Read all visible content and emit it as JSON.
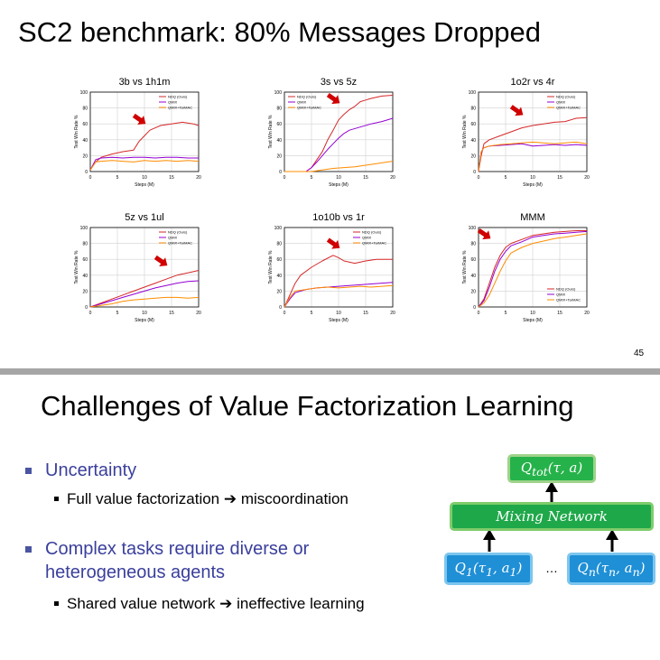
{
  "slide1": {
    "title": "SC2 benchmark: 80% Messages Dropped",
    "page_number": "45"
  },
  "slide2": {
    "title": "Challenges of Value Factorization Learning",
    "bullets": [
      {
        "label": "Uncertainty",
        "sub": "Full value factorization ➔ miscoordination"
      },
      {
        "label": "Complex tasks require diverse or heterogeneous agents",
        "sub": "Shared value network ➔ ineffective learning"
      }
    ],
    "diagram": {
      "top": "Q_tot(τ, a)",
      "mixer": "Mixing Network",
      "left": "Q_1(τ_1, a_1)",
      "right": "Q_n(τ_n, a_n)",
      "ellipsis": "…"
    }
  },
  "colors": {
    "ndq": "#d62728",
    "qmix": "#9400d3",
    "tarmac": "#ff8c00",
    "arrow": "#d00000"
  },
  "chart_data": [
    {
      "type": "line",
      "title": "3b vs 1h1m",
      "xlabel": "Steps (M)",
      "ylabel": "Test Win Rate %",
      "xlim": [
        0,
        20
      ],
      "ylim": [
        0,
        100
      ],
      "xticks": [
        0,
        5,
        10,
        15,
        20
      ],
      "yticks": [
        0,
        20,
        40,
        60,
        80,
        100
      ],
      "legend": "top-right",
      "arrow_at": [
        9,
        66
      ],
      "series": [
        {
          "name": "NDQ (Ours)",
          "x": [
            0,
            1,
            2,
            4,
            6,
            8,
            9,
            10,
            11,
            12,
            13,
            15,
            17,
            19,
            20
          ],
          "y": [
            2,
            12,
            18,
            22,
            25,
            27,
            38,
            45,
            52,
            55,
            58,
            60,
            62,
            60,
            58
          ]
        },
        {
          "name": "QMIX",
          "x": [
            0,
            1,
            2,
            4,
            6,
            8,
            10,
            12,
            14,
            16,
            18,
            20
          ],
          "y": [
            2,
            15,
            17,
            18,
            17,
            18,
            18,
            17,
            18,
            18,
            17,
            17
          ]
        },
        {
          "name": "QMIX+TarMAC",
          "x": [
            0,
            1,
            2,
            4,
            6,
            8,
            10,
            12,
            14,
            16,
            18,
            20
          ],
          "y": [
            2,
            12,
            13,
            14,
            13,
            12,
            14,
            13,
            14,
            13,
            14,
            13
          ]
        }
      ]
    },
    {
      "type": "line",
      "title": "3s vs 5z",
      "xlabel": "Steps (M)",
      "ylabel": "Test Win Rate %",
      "xlim": [
        0,
        20
      ],
      "ylim": [
        0,
        100
      ],
      "xticks": [
        0,
        5,
        10,
        15,
        20
      ],
      "yticks": [
        0,
        20,
        40,
        60,
        80,
        100
      ],
      "legend": "top-left",
      "arrow_at": [
        9,
        92
      ],
      "series": [
        {
          "name": "NDQ (Ours)",
          "x": [
            0,
            4,
            5,
            6,
            7,
            8,
            9,
            10,
            11,
            12,
            13,
            14,
            15,
            16,
            18,
            20
          ],
          "y": [
            0,
            0,
            5,
            15,
            25,
            40,
            52,
            65,
            72,
            78,
            82,
            88,
            90,
            92,
            95,
            96
          ]
        },
        {
          "name": "QMIX",
          "x": [
            0,
            4,
            5,
            6,
            7,
            8,
            9,
            10,
            11,
            12,
            14,
            16,
            18,
            20
          ],
          "y": [
            0,
            0,
            5,
            12,
            20,
            28,
            35,
            42,
            48,
            52,
            56,
            60,
            63,
            67
          ]
        },
        {
          "name": "QMIX+TarMAC",
          "x": [
            0,
            5,
            7,
            9,
            11,
            13,
            15,
            17,
            19,
            20
          ],
          "y": [
            0,
            0,
            2,
            4,
            5,
            6,
            8,
            10,
            12,
            13
          ]
        }
      ]
    },
    {
      "type": "line",
      "title": "1o2r vs 4r",
      "xlabel": "Steps (M)",
      "ylabel": "Test Win Rate %",
      "xlim": [
        0,
        20
      ],
      "ylim": [
        0,
        100
      ],
      "xticks": [
        0,
        5,
        10,
        15,
        20
      ],
      "yticks": [
        0,
        20,
        40,
        60,
        80,
        100
      ],
      "legend": "top-right",
      "arrow_at": [
        7,
        77
      ],
      "series": [
        {
          "name": "NDQ (Ours)",
          "x": [
            0,
            0.5,
            1,
            2,
            4,
            6,
            8,
            10,
            12,
            14,
            16,
            18,
            20
          ],
          "y": [
            0,
            20,
            35,
            40,
            45,
            50,
            55,
            58,
            60,
            62,
            63,
            67,
            68
          ]
        },
        {
          "name": "QMIX",
          "x": [
            0,
            0.5,
            1,
            2,
            4,
            6,
            8,
            10,
            12,
            14,
            16,
            18,
            20
          ],
          "y": [
            0,
            25,
            30,
            32,
            33,
            34,
            35,
            32,
            33,
            34,
            33,
            34,
            33
          ]
        },
        {
          "name": "QMIX+TarMAC",
          "x": [
            0,
            0.5,
            1,
            2,
            4,
            6,
            8,
            10,
            12,
            14,
            16,
            18,
            20
          ],
          "y": [
            0,
            25,
            30,
            32,
            34,
            35,
            36,
            37,
            36,
            35,
            36,
            37,
            35
          ]
        }
      ]
    },
    {
      "type": "line",
      "title": "5z vs 1ul",
      "xlabel": "Steps (M)",
      "ylabel": "Test Win Rate %",
      "xlim": [
        0,
        20
      ],
      "ylim": [
        0,
        100
      ],
      "xticks": [
        0,
        5,
        10,
        15,
        20
      ],
      "yticks": [
        0,
        20,
        40,
        60,
        80,
        100
      ],
      "legend": "top-right",
      "arrow_at": [
        13,
        58
      ],
      "series": [
        {
          "name": "NDQ (Ours)",
          "x": [
            0,
            2,
            4,
            6,
            8,
            10,
            12,
            14,
            16,
            18,
            20
          ],
          "y": [
            0,
            5,
            10,
            15,
            20,
            25,
            30,
            35,
            40,
            43,
            46
          ]
        },
        {
          "name": "QMIX",
          "x": [
            0,
            2,
            4,
            6,
            8,
            10,
            12,
            14,
            16,
            18,
            20
          ],
          "y": [
            0,
            4,
            8,
            12,
            16,
            20,
            24,
            27,
            30,
            32,
            33
          ]
        },
        {
          "name": "QMIX+TarMAC",
          "x": [
            0,
            2,
            4,
            6,
            8,
            10,
            12,
            14,
            16,
            18,
            20
          ],
          "y": [
            0,
            2,
            4,
            7,
            9,
            10,
            11,
            12,
            12,
            11,
            12
          ]
        }
      ]
    },
    {
      "type": "line",
      "title": "1o10b vs 1r",
      "xlabel": "Steps (M)",
      "ylabel": "Test Win Rate %",
      "xlim": [
        0,
        20
      ],
      "ylim": [
        0,
        100
      ],
      "xticks": [
        0,
        5,
        10,
        15,
        20
      ],
      "yticks": [
        0,
        20,
        40,
        60,
        80,
        100
      ],
      "legend": "top-right",
      "arrow_at": [
        9,
        80
      ],
      "series": [
        {
          "name": "NDQ (Ours)",
          "x": [
            0,
            1,
            2,
            3,
            5,
            7,
            9,
            10,
            11,
            13,
            15,
            17,
            20
          ],
          "y": [
            0,
            15,
            30,
            40,
            50,
            58,
            65,
            62,
            58,
            55,
            58,
            60,
            60
          ]
        },
        {
          "name": "QMIX",
          "x": [
            0,
            1,
            2,
            4,
            6,
            8,
            10,
            12,
            14,
            16,
            18,
            20
          ],
          "y": [
            0,
            10,
            18,
            22,
            24,
            25,
            26,
            27,
            28,
            29,
            30,
            31
          ]
        },
        {
          "name": "QMIX+TarMAC",
          "x": [
            0,
            1,
            2,
            4,
            6,
            8,
            10,
            12,
            14,
            16,
            18,
            20
          ],
          "y": [
            0,
            12,
            20,
            22,
            24,
            25,
            24,
            25,
            26,
            25,
            26,
            27
          ]
        }
      ]
    },
    {
      "type": "line",
      "title": "MMM",
      "xlabel": "Steps (M)",
      "ylabel": "Test Win Rate %",
      "xlim": [
        0,
        20
      ],
      "ylim": [
        0,
        100
      ],
      "xticks": [
        0,
        5,
        10,
        15,
        20
      ],
      "yticks": [
        0,
        20,
        40,
        60,
        80,
        100
      ],
      "legend": "bottom-right",
      "arrow_at": [
        1,
        92
      ],
      "series": [
        {
          "name": "NDQ (Ours)",
          "x": [
            0,
            1,
            2,
            3,
            4,
            5,
            6,
            8,
            10,
            12,
            14,
            16,
            18,
            20
          ],
          "y": [
            0,
            10,
            30,
            50,
            65,
            75,
            80,
            85,
            90,
            92,
            94,
            95,
            96,
            96
          ]
        },
        {
          "name": "QMIX",
          "x": [
            0,
            1,
            2,
            3,
            4,
            5,
            6,
            8,
            10,
            12,
            14,
            16,
            18,
            20
          ],
          "y": [
            0,
            8,
            25,
            45,
            60,
            70,
            77,
            82,
            88,
            90,
            92,
            93,
            94,
            95
          ]
        },
        {
          "name": "QMIX+TarMAC",
          "x": [
            0,
            1,
            2,
            3,
            4,
            5,
            6,
            8,
            10,
            12,
            14,
            16,
            18,
            20
          ],
          "y": [
            0,
            5,
            15,
            30,
            45,
            58,
            68,
            75,
            80,
            83,
            86,
            88,
            90,
            92
          ]
        }
      ]
    }
  ]
}
